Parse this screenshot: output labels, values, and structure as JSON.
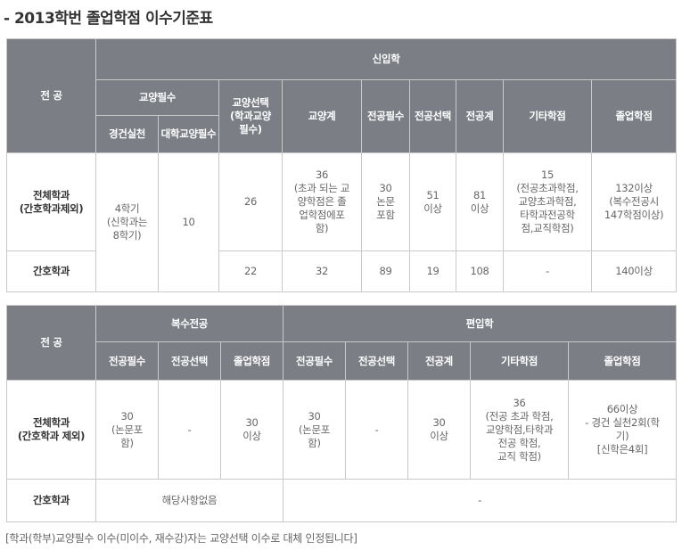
{
  "page_title": "- 2013학번 졸업학점 이수기준표",
  "table1": {
    "major_header": "전 공",
    "group_header": "신입학",
    "required_liberal": "교양필수",
    "liberal_elective": "교양선택\n(학과교양\n필수)",
    "liberal_total": "교양계",
    "major_required": "전공필수",
    "major_elective": "전공선택",
    "major_total": "전공계",
    "other_credits": "기타학점",
    "graduation_credits": "졸업학점",
    "practice": "경건실천",
    "univ_required": "대학교양필수",
    "rows": [
      {
        "major": "전체학과\n(간호학과제외)",
        "practice": "4학기\n(신학과는\n8학기)",
        "univ_required": "10",
        "liberal_elective": "26",
        "liberal_total": "36\n(초과 되는 교\n양학점은 졸\n업학점에포\n함)",
        "major_required": "30\n논문\n포함",
        "major_elective": "51\n이상",
        "major_total": "81\n이상",
        "other_credits": "15\n(전공초과학점,\n교양초과학점,\n타학과전공학\n점,교직학점)",
        "graduation_credits": "132이상\n(복수전공시\n147학점이상)"
      },
      {
        "major": "간호학과",
        "liberal_elective": "22",
        "liberal_total": "32",
        "major_required": "89",
        "major_elective": "19",
        "major_total": "108",
        "other_credits": "-",
        "graduation_credits": "140이상"
      }
    ]
  },
  "table2": {
    "major_header": "전 공",
    "double_major": "복수전공",
    "transfer": "편입학",
    "dm_major_required": "전공필수",
    "dm_major_elective": "전공선택",
    "dm_graduation": "졸업학점",
    "tr_major_required": "전공필수",
    "tr_major_elective": "전공선택",
    "tr_major_total": "전공계",
    "tr_other": "기타학점",
    "tr_graduation": "졸업학점",
    "rows": [
      {
        "major": "전체학과\n(간호학과 제외)",
        "dm_major_required": "30\n(논문포\n함)",
        "dm_major_elective": "-",
        "dm_graduation": "30\n이상",
        "tr_major_required": "30\n(논문포\n함)",
        "tr_major_elective": "-",
        "tr_major_total": "30\n이상",
        "tr_other": "36\n(전공 초과 학점,\n교양학점,타학과\n전공 학점,\n교직 학점)",
        "tr_graduation": "66이상\n- 경건 실천2회(학\n기)\n[신학은4회]"
      },
      {
        "major": "간호학과",
        "dm_note": "해당사항없음",
        "tr_note": "-"
      }
    ]
  },
  "footnote": "[학과(학부)교양필수 이수(미이수, 재수강)자는 교양선택 이수로 대체 인정됩니다]"
}
